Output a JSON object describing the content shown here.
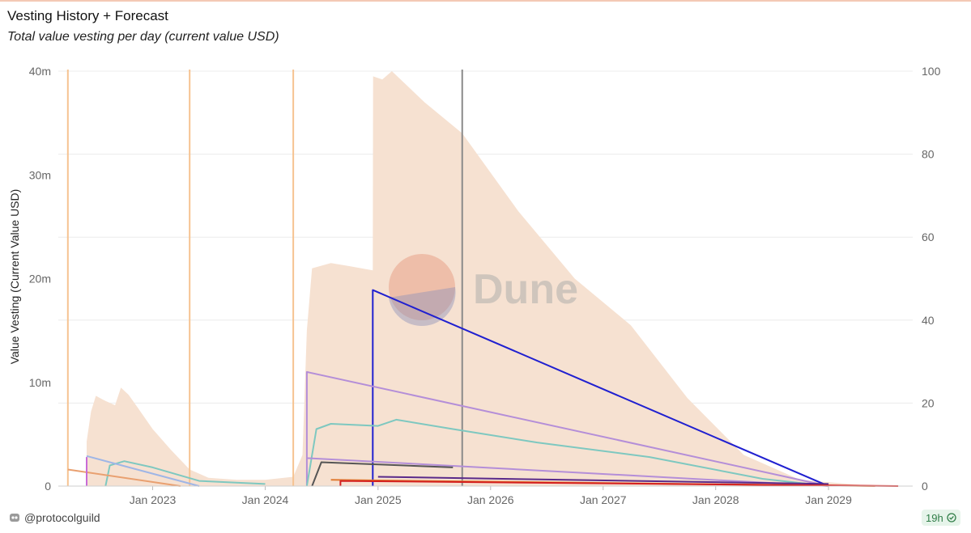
{
  "header": {
    "title": "Vesting History + Forecast",
    "subtitle": "Total value vesting per day (current value USD)"
  },
  "footer": {
    "user": "@protocolguild",
    "age_badge": "19h",
    "user_icon": "dune-avatar-icon",
    "status_icon": "check-circle-icon"
  },
  "watermark": "Dune",
  "chart_data": {
    "type": "area",
    "xlabel": "",
    "ylabel": "Value Vesting (Current Value USD)",
    "y2label": "",
    "ylim": [
      0,
      40000000
    ],
    "y2lim": [
      0,
      100
    ],
    "xlim": [
      "2022-03-01",
      "2029-10-01"
    ],
    "grid": true,
    "legend": "none",
    "y_ticks": [
      {
        "value": 0,
        "label": "0"
      },
      {
        "value": 10000000,
        "label": "10m"
      },
      {
        "value": 20000000,
        "label": "20m"
      },
      {
        "value": 30000000,
        "label": "30m"
      },
      {
        "value": 40000000,
        "label": "40m"
      }
    ],
    "y2_ticks": [
      {
        "value": 0,
        "label": "0"
      },
      {
        "value": 20,
        "label": "20"
      },
      {
        "value": 40,
        "label": "40"
      },
      {
        "value": 60,
        "label": "60"
      },
      {
        "value": 80,
        "label": "80"
      },
      {
        "value": 100,
        "label": "100"
      }
    ],
    "x_ticks": [
      {
        "date": "2023-01-01",
        "label": "Jan 2023"
      },
      {
        "date": "2024-01-01",
        "label": "Jan 2024"
      },
      {
        "date": "2025-01-01",
        "label": "Jan 2025"
      },
      {
        "date": "2026-01-01",
        "label": "Jan 2026"
      },
      {
        "date": "2027-01-01",
        "label": "Jan 2027"
      },
      {
        "date": "2028-01-01",
        "label": "Jan 2028"
      },
      {
        "date": "2029-01-01",
        "label": "Jan 2029"
      }
    ],
    "colors": {
      "area": "#f6e1d1",
      "vline_orange": "#f6c391",
      "vline_today": "#8a8a8a",
      "grid": "#ececec",
      "axis_text": "#666666"
    },
    "vlines": [
      {
        "date": "2022-04-01",
        "color": "#f6c391"
      },
      {
        "date": "2023-05-01",
        "color": "#f6c391"
      },
      {
        "date": "2024-04-01",
        "color": "#f6c391"
      },
      {
        "date": "2025-10-01",
        "color": "#8a8a8a"
      }
    ],
    "area": [
      [
        "2022-06-01",
        0
      ],
      [
        "2022-06-01",
        4300000
      ],
      [
        "2022-06-15",
        7200000
      ],
      [
        "2022-07-01",
        8700000
      ],
      [
        "2022-08-01",
        8200000
      ],
      [
        "2022-09-01",
        7800000
      ],
      [
        "2022-09-20",
        9500000
      ],
      [
        "2022-10-15",
        8800000
      ],
      [
        "2022-11-15",
        7500000
      ],
      [
        "2023-01-01",
        5500000
      ],
      [
        "2023-03-01",
        3500000
      ],
      [
        "2023-05-01",
        1600000
      ],
      [
        "2023-07-01",
        800000
      ],
      [
        "2023-10-01",
        600000
      ],
      [
        "2024-01-01",
        600000
      ],
      [
        "2024-04-01",
        900000
      ],
      [
        "2024-05-01",
        3000000
      ],
      [
        "2024-05-15",
        15000000
      ],
      [
        "2024-06-01",
        21000000
      ],
      [
        "2024-08-01",
        21500000
      ],
      [
        "2024-10-01",
        21200000
      ],
      [
        "2024-12-15",
        20800000
      ],
      [
        "2024-12-16",
        39500000
      ],
      [
        "2025-01-15",
        39200000
      ],
      [
        "2025-02-15",
        40000000
      ],
      [
        "2025-06-01",
        37000000
      ],
      [
        "2025-10-01",
        34000000
      ],
      [
        "2026-04-01",
        26500000
      ],
      [
        "2026-10-01",
        20000000
      ],
      [
        "2027-04-01",
        15500000
      ],
      [
        "2027-10-01",
        8500000
      ],
      [
        "2028-04-01",
        3000000
      ],
      [
        "2028-10-01",
        600000
      ],
      [
        "2029-06-01",
        0
      ]
    ],
    "series": [
      {
        "color": "#2020d0",
        "points": [
          [
            "2024-12-15",
            0
          ],
          [
            "2024-12-15",
            18900000
          ],
          [
            "2029-01-01",
            0
          ]
        ]
      },
      {
        "color": "#b48ed8",
        "points": [
          [
            "2024-05-15",
            0
          ],
          [
            "2024-05-15",
            11000000
          ],
          [
            "2029-01-01",
            0
          ]
        ]
      },
      {
        "color": "#7ec8c0",
        "points": [
          [
            "2024-05-15",
            0
          ],
          [
            "2024-06-15",
            5500000
          ],
          [
            "2024-08-01",
            6000000
          ],
          [
            "2025-01-01",
            5800000
          ],
          [
            "2025-03-01",
            6400000
          ],
          [
            "2025-09-01",
            5500000
          ],
          [
            "2026-06-01",
            4200000
          ],
          [
            "2027-06-01",
            2800000
          ],
          [
            "2028-06-01",
            700000
          ],
          [
            "2029-01-01",
            0
          ]
        ]
      },
      {
        "color": "#b48ed8",
        "points": [
          [
            "2024-05-15",
            2700000
          ],
          [
            "2025-06-01",
            2100000
          ],
          [
            "2029-01-01",
            0
          ]
        ]
      },
      {
        "color": "#555555",
        "points": [
          [
            "2024-06-01",
            0
          ],
          [
            "2024-07-01",
            2300000
          ],
          [
            "2025-09-01",
            1800000
          ]
        ]
      },
      {
        "color": "#7ec8c0",
        "points": [
          [
            "2022-08-01",
            0
          ],
          [
            "2022-08-15",
            2000000
          ],
          [
            "2022-10-01",
            2400000
          ],
          [
            "2023-01-01",
            1800000
          ],
          [
            "2023-06-01",
            500000
          ],
          [
            "2024-01-01",
            200000
          ]
        ]
      },
      {
        "color": "#9fb6e6",
        "points": [
          [
            "2022-06-01",
            2900000
          ],
          [
            "2023-06-01",
            0
          ]
        ]
      },
      {
        "color": "#e9a070",
        "points": [
          [
            "2022-04-01",
            1600000
          ],
          [
            "2023-04-01",
            0
          ]
        ]
      },
      {
        "color": "#c86bd8",
        "points": [
          [
            "2022-06-01",
            0
          ],
          [
            "2022-06-01",
            2800000
          ]
        ]
      },
      {
        "color": "#5a2a8a",
        "points": [
          [
            "2025-01-01",
            900000
          ],
          [
            "2029-01-01",
            200000
          ]
        ]
      },
      {
        "color": "#e07a30",
        "points": [
          [
            "2024-08-01",
            600000
          ],
          [
            "2029-06-01",
            0
          ]
        ]
      },
      {
        "color": "#d42020",
        "points": [
          [
            "2024-09-01",
            0
          ],
          [
            "2024-09-01",
            500000
          ],
          [
            "2029-08-15",
            0
          ]
        ]
      }
    ]
  }
}
